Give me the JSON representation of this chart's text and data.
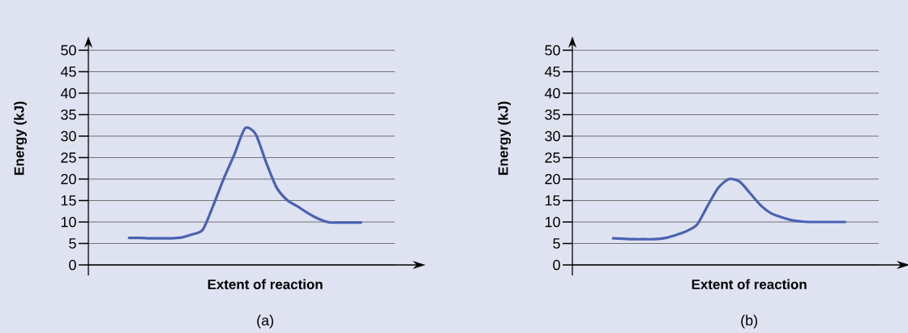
{
  "chart_data": [
    {
      "type": "line",
      "ylabel": "Energy (kJ)",
      "xlabel": "Extent of reaction",
      "annotations": [
        "(a)"
      ],
      "categories": [
        null,
        null,
        null,
        null,
        null,
        null,
        null,
        null,
        null,
        null,
        null,
        null,
        null,
        null,
        null,
        null,
        null,
        null,
        null,
        null,
        null,
        null,
        null
      ],
      "values": [
        6.3,
        6.3,
        6.2,
        6.2,
        6.2,
        6.4,
        7.1,
        8.2,
        13.9,
        20.2,
        25.8,
        31.8,
        30.5,
        23.9,
        18.0,
        15.1,
        13.6,
        12.0,
        10.7,
        9.9,
        9.9,
        9.9,
        9.9
      ],
      "color": "#4a62b2",
      "ylim": [
        0,
        50
      ],
      "yticks": [
        0,
        5,
        10,
        15,
        20,
        25,
        30,
        35,
        40,
        45,
        50
      ],
      "grid": "y",
      "tick_labels": "y"
    },
    {
      "type": "line",
      "ylabel": "Energy (kJ)",
      "xlabel": "Extent of reaction",
      "annotations": [
        "(b)"
      ],
      "categories": [
        null,
        null,
        null,
        null,
        null,
        null,
        null,
        null,
        null,
        null,
        null,
        null,
        null,
        null,
        null,
        null,
        null,
        null,
        null,
        null,
        null,
        null,
        null
      ],
      "values": [
        6.2,
        6.1,
        6.0,
        6.0,
        6.0,
        6.3,
        7.0,
        7.9,
        9.5,
        13.9,
        18.0,
        20.0,
        19.4,
        16.7,
        13.9,
        12.0,
        11.1,
        10.4,
        10.1,
        10.0,
        10.0,
        10.0,
        10.0
      ],
      "color": "#4a62b2",
      "ylim": [
        0,
        50
      ],
      "yticks": [
        0,
        5,
        10,
        15,
        20,
        25,
        30,
        35,
        40,
        45,
        50
      ],
      "grid": "y",
      "tick_labels": "y"
    }
  ]
}
